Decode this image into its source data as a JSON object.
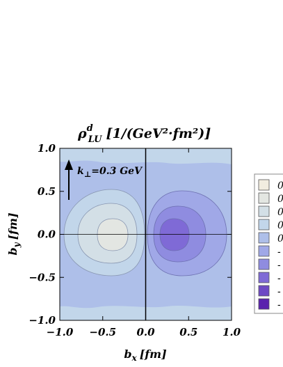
{
  "chart_data": {
    "type": "contour",
    "title": {
      "rho": "ρ",
      "sup": "d",
      "sub": "LU",
      "units": "[1/(GeV²·fm²)]"
    },
    "xlabel": {
      "var": "b",
      "sub": "x",
      "unit": "[fm]"
    },
    "ylabel": {
      "var": "b",
      "sub": "y",
      "unit": "[fm]"
    },
    "xlim": [
      -1.0,
      1.0
    ],
    "ylim": [
      -1.0,
      1.0
    ],
    "x_ticks": [
      "−1.0",
      "−0.5",
      "0.0",
      "0.5",
      "1.0"
    ],
    "y_ticks": [
      "1.0",
      "0.5",
      "0.0",
      "−0.5",
      "−1.0"
    ],
    "annotation": {
      "k": "k",
      "sub": "⊥",
      "value": "=0.3 GeV"
    },
    "legend": {
      "placement": "right",
      "entries": [
        {
          "label": "0",
          "color": "#f2ede0"
        },
        {
          "label": "0",
          "color": "#e3e6e2"
        },
        {
          "label": "0",
          "color": "#d3dfe6"
        },
        {
          "label": "0",
          "color": "#c2d6ea"
        },
        {
          "label": "0",
          "color": "#aebfe9"
        },
        {
          "label": "-",
          "color": "#a0a8e7"
        },
        {
          "label": "-",
          "color": "#8f8ce0"
        },
        {
          "label": "-",
          "color": "#7f6ad6"
        },
        {
          "label": "-",
          "color": "#6e49c4"
        },
        {
          "label": "-",
          "color": "#5a22ad"
        }
      ]
    }
  }
}
